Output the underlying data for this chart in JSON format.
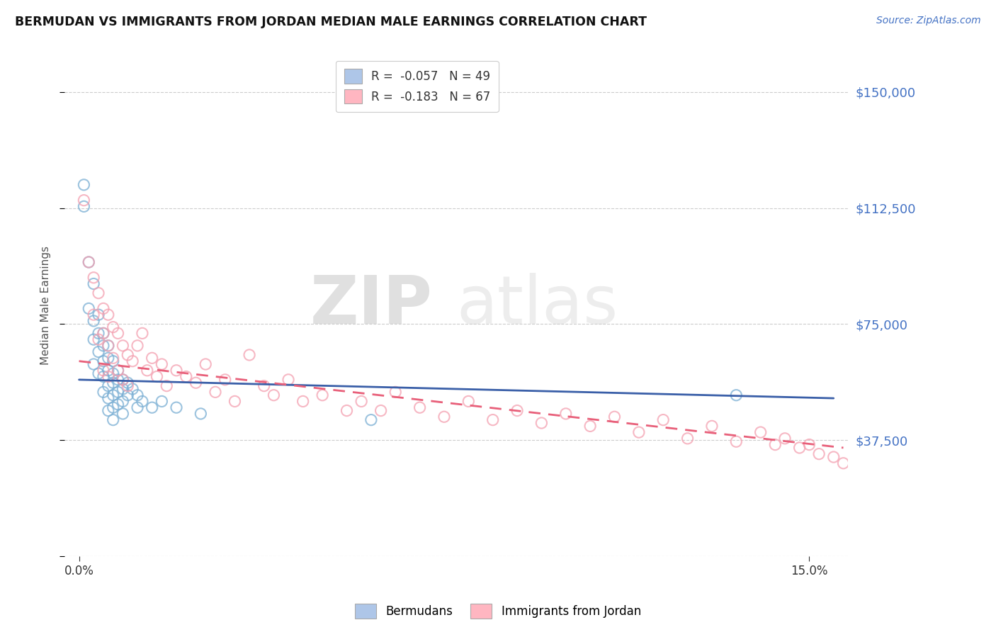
{
  "title": "BERMUDAN VS IMMIGRANTS FROM JORDAN MEDIAN MALE EARNINGS CORRELATION CHART",
  "source": "Source: ZipAtlas.com",
  "ylabel": "Median Male Earnings",
  "y_ticks": [
    0,
    37500,
    75000,
    112500,
    150000
  ],
  "y_tick_labels": [
    "",
    "$37,500",
    "$75,000",
    "$112,500",
    "$150,000"
  ],
  "y_color": "#4472C4",
  "xlim": [
    -0.003,
    0.158
  ],
  "ylim": [
    5000,
    162000
  ],
  "legend1_label": "R =  -0.057   N = 49",
  "legend2_label": "R =  -0.183   N = 67",
  "legend1_color": "#AEC6E8",
  "legend2_color": "#FFB6C1",
  "series1_color": "#7BAFD4",
  "series2_color": "#F4A0B0",
  "trendline1_color": "#3A5FA8",
  "trendline2_color": "#E8607A",
  "watermark_zip": "ZIP",
  "watermark_atlas": "atlas",
  "background_color": "#FFFFFF",
  "grid_color": "#CCCCCC",
  "bermudans_x": [
    0.001,
    0.001,
    0.002,
    0.002,
    0.003,
    0.003,
    0.003,
    0.003,
    0.004,
    0.004,
    0.004,
    0.004,
    0.005,
    0.005,
    0.005,
    0.005,
    0.005,
    0.006,
    0.006,
    0.006,
    0.006,
    0.006,
    0.006,
    0.007,
    0.007,
    0.007,
    0.007,
    0.007,
    0.007,
    0.008,
    0.008,
    0.008,
    0.008,
    0.009,
    0.009,
    0.009,
    0.009,
    0.01,
    0.01,
    0.011,
    0.012,
    0.012,
    0.013,
    0.015,
    0.017,
    0.02,
    0.025,
    0.06,
    0.135
  ],
  "bermudans_y": [
    120000,
    113000,
    95000,
    80000,
    88000,
    76000,
    70000,
    62000,
    78000,
    72000,
    66000,
    59000,
    72000,
    68000,
    63000,
    58000,
    53000,
    68000,
    64000,
    60000,
    55000,
    51000,
    47000,
    63000,
    59000,
    56000,
    52000,
    48000,
    44000,
    60000,
    57000,
    53000,
    49000,
    57000,
    54000,
    50000,
    46000,
    56000,
    52000,
    54000,
    52000,
    48000,
    50000,
    48000,
    50000,
    48000,
    46000,
    44000,
    52000
  ],
  "jordan_x": [
    0.001,
    0.002,
    0.003,
    0.003,
    0.004,
    0.004,
    0.005,
    0.005,
    0.005,
    0.006,
    0.006,
    0.006,
    0.007,
    0.007,
    0.008,
    0.008,
    0.009,
    0.009,
    0.01,
    0.01,
    0.011,
    0.012,
    0.013,
    0.014,
    0.015,
    0.016,
    0.017,
    0.018,
    0.02,
    0.022,
    0.024,
    0.026,
    0.028,
    0.03,
    0.032,
    0.035,
    0.038,
    0.04,
    0.043,
    0.046,
    0.05,
    0.055,
    0.058,
    0.062,
    0.065,
    0.07,
    0.075,
    0.08,
    0.085,
    0.09,
    0.095,
    0.1,
    0.105,
    0.11,
    0.115,
    0.12,
    0.125,
    0.13,
    0.135,
    0.14,
    0.143,
    0.145,
    0.148,
    0.15,
    0.152,
    0.155,
    0.157
  ],
  "jordan_y": [
    115000,
    95000,
    90000,
    78000,
    85000,
    70000,
    80000,
    72000,
    60000,
    78000,
    68000,
    58000,
    74000,
    64000,
    72000,
    60000,
    68000,
    57000,
    65000,
    55000,
    63000,
    68000,
    72000,
    60000,
    64000,
    58000,
    62000,
    55000,
    60000,
    58000,
    56000,
    62000,
    53000,
    57000,
    50000,
    65000,
    55000,
    52000,
    57000,
    50000,
    52000,
    47000,
    50000,
    47000,
    53000,
    48000,
    45000,
    50000,
    44000,
    47000,
    43000,
    46000,
    42000,
    45000,
    40000,
    44000,
    38000,
    42000,
    37000,
    40000,
    36000,
    38000,
    35000,
    36000,
    33000,
    32000,
    30000
  ]
}
